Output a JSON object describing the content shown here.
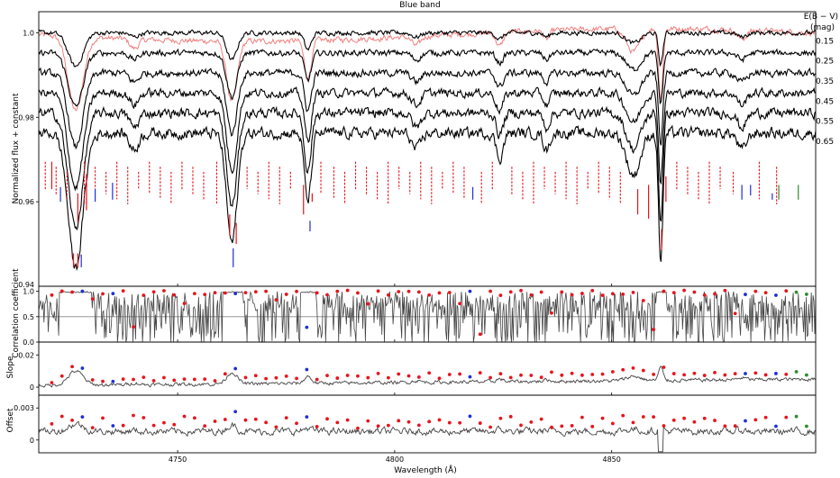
{
  "chart_data": [
    {
      "type": "line",
      "title": "Blue band",
      "xlabel": "Wavelength (Å)",
      "ylabel": "Normalized flux + constant",
      "xlim": [
        4718,
        4897
      ],
      "ylim": [
        0.94,
        1.005
      ],
      "xticks": [
        4750,
        4800,
        4850
      ],
      "xtick_labels": [
        "4750",
        "4800",
        "4850"
      ],
      "yticks": [
        0.96,
        0.98,
        1.0
      ],
      "ytick_labels": [
        "0.96",
        "0.98",
        "1.0"
      ],
      "extra_ytick_label": "0.94",
      "legend_title_line1": "E(B − V)",
      "legend_title_line2": "(mag)",
      "reference_color": "#f08080",
      "series_color": "#000000",
      "series": [
        {
          "name": "0.15",
          "offset": 0.0,
          "depth": 0.25
        },
        {
          "name": "0.25",
          "offset": 0.00475,
          "depth": 0.4
        },
        {
          "name": "0.35",
          "offset": 0.0095,
          "depth": 0.55
        },
        {
          "name": "0.45",
          "offset": 0.01425,
          "depth": 0.7
        },
        {
          "name": "0.55",
          "offset": 0.019,
          "depth": 0.85
        },
        {
          "name": "0.65",
          "offset": 0.02375,
          "depth": 1.0
        }
      ],
      "absorption_lines": [
        {
          "wl": 4726.5,
          "depth": 0.032,
          "width": 1.7
        },
        {
          "wl": 4762.5,
          "depth": 0.026,
          "width": 1.2
        },
        {
          "wl": 4780.0,
          "depth": 0.016,
          "width": 0.8
        },
        {
          "wl": 4824.2,
          "depth": 0.006,
          "width": 0.8
        },
        {
          "wl": 4835.0,
          "depth": 0.004,
          "width": 0.7
        },
        {
          "wl": 4855.0,
          "depth": 0.01,
          "width": 1.6
        },
        {
          "wl": 4861.3,
          "depth": 0.03,
          "width": 0.5
        },
        {
          "wl": 4740.0,
          "depth": 0.004,
          "width": 1.0
        },
        {
          "wl": 4805.0,
          "depth": 0.004,
          "width": 1.0
        },
        {
          "wl": 4880.0,
          "depth": 0.004,
          "width": 1.0
        }
      ],
      "line_markers": {
        "red_dashed_x": [
          4719.5,
          4722,
          4724.5,
          4728.5,
          4731,
          4733.5,
          4736,
          4738.5,
          4741,
          4743.5,
          4746,
          4748.5,
          4751,
          4753.5,
          4756,
          4759,
          4766,
          4768.5,
          4771,
          4773.5,
          4776,
          4783,
          4786,
          4788.5,
          4791,
          4793.5,
          4796,
          4798.5,
          4801,
          4803.5,
          4806,
          4808.5,
          4811,
          4813.5,
          4816,
          4820,
          4822.5,
          4827,
          4829.5,
          4832,
          4834.5,
          4837,
          4839.5,
          4842,
          4844.5,
          4847,
          4849.5,
          4852,
          4865,
          4867.5,
          4870,
          4872.5,
          4875,
          4878,
          4884,
          4888
        ],
        "red_solid": [
          {
            "x": 4721,
            "y0": 0.9695,
            "y1": 0.963
          },
          {
            "x": 4727,
            "y0": 0.962,
            "y1": 0.955
          },
          {
            "x": 4729,
            "y0": 0.9665,
            "y1": 0.958
          },
          {
            "x": 4762,
            "y0": 0.957,
            "y1": 0.952
          },
          {
            "x": 4763.5,
            "y0": 0.955,
            "y1": 0.95
          },
          {
            "x": 4779,
            "y0": 0.964,
            "y1": 0.957
          },
          {
            "x": 4781,
            "y0": 0.962,
            "y1": 0.96
          },
          {
            "x": 4856,
            "y0": 0.963,
            "y1": 0.957
          },
          {
            "x": 4858.5,
            "y0": 0.964,
            "y1": 0.956
          },
          {
            "x": 4861.5,
            "y0": 0.9535,
            "y1": 0.9485
          },
          {
            "x": 4862.5,
            "y0": 0.966,
            "y1": 0.96
          }
        ],
        "red_solid_low": [
          {
            "x": 4726,
            "y0": 0.9478,
            "y1": 0.9445
          },
          {
            "x": 4727,
            "y0": 0.9478,
            "y1": 0.9445
          }
        ],
        "blue": [
          {
            "x": 4723,
            "y0": 0.9635,
            "y1": 0.96
          },
          {
            "x": 4731,
            "y0": 0.963,
            "y1": 0.96
          },
          {
            "x": 4735,
            "y0": 0.9645,
            "y1": 0.9605
          },
          {
            "x": 4727.8,
            "y0": 0.9475,
            "y1": 0.9445
          },
          {
            "x": 4762.8,
            "y0": 0.949,
            "y1": 0.9445
          },
          {
            "x": 4780.5,
            "y0": 0.9555,
            "y1": 0.953
          },
          {
            "x": 4818,
            "y0": 0.9635,
            "y1": 0.9605
          },
          {
            "x": 4880,
            "y0": 0.964,
            "y1": 0.9605
          },
          {
            "x": 4882,
            "y0": 0.964,
            "y1": 0.9615
          },
          {
            "x": 4887,
            "y0": 0.962,
            "y1": 0.9605
          }
        ],
        "green": [
          {
            "x": 4888.5,
            "y0": 0.964,
            "y1": 0.9605
          },
          {
            "x": 4893,
            "y0": 0.964,
            "y1": 0.9605
          }
        ]
      }
    },
    {
      "type": "line",
      "ylabel": "Correlation coefficient",
      "ylim": [
        0.0,
        1.1
      ],
      "yticks": [
        0.0,
        0.5,
        1.0
      ],
      "ytick_labels": [
        "0.0",
        "0.5",
        "1.0"
      ],
      "reference_line": 0.5,
      "line_color": "#444444"
    },
    {
      "type": "line",
      "ylabel": "Slope",
      "ylim": [
        -0.005,
        0.028
      ],
      "yticks": [
        0.0,
        0.02
      ],
      "ytick_labels": [
        "0",
        "0.02"
      ],
      "line_color": "#444444"
    },
    {
      "type": "line",
      "ylabel": "Offset",
      "ylim": [
        -0.0012,
        0.0042
      ],
      "yticks": [
        0.0,
        0.003
      ],
      "ytick_labels": [
        "0",
        "0.003"
      ],
      "line_color": "#444444"
    }
  ],
  "dot_colors": {
    "red": "#e8141c",
    "blue": "#1f2fd8",
    "green": "#2e8b2e"
  }
}
